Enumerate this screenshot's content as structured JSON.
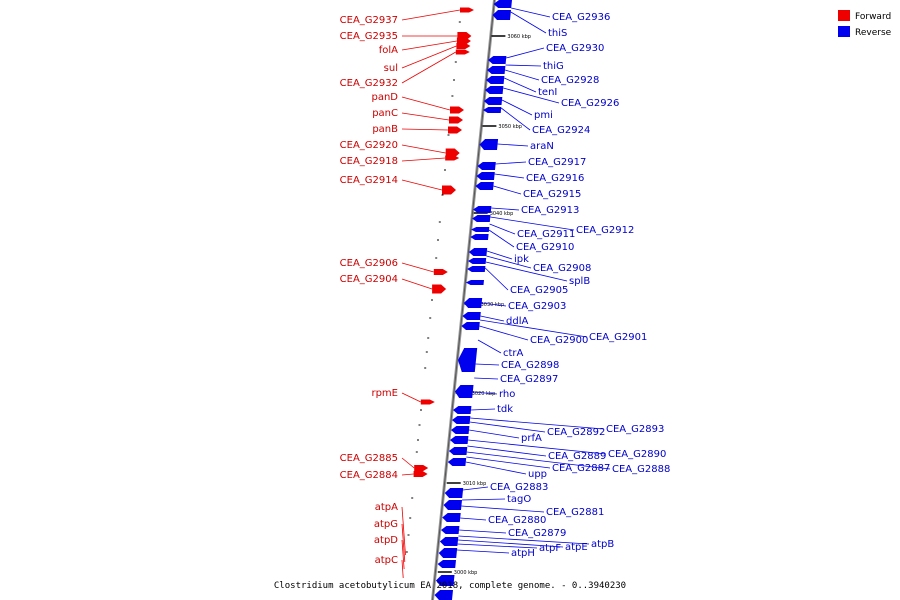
{
  "caption": "Clostridium acetobutylicum EA 2018, complete genome. - 0..3940230",
  "colors": {
    "forward": "#ee0000",
    "reverse": "#0000ee",
    "forward_text": "#cc0000",
    "reverse_text": "#0000cc"
  },
  "legend": [
    {
      "label": "Forward",
      "strand": "forward"
    },
    {
      "label": "Reverse",
      "strand": "reverse"
    }
  ],
  "scale_ticks": [
    "3060 kbp",
    "3050 kbp",
    "3040 kbp",
    "3030 kbp",
    "3020 kbp",
    "3010 kbp",
    "3000 kbp"
  ],
  "forward_genes": [
    "CEA_G2937",
    "CEA_G2935",
    "folA",
    "sul",
    "CEA_G2932",
    "panD",
    "panC",
    "panB",
    "CEA_G2920",
    "CEA_G2918",
    "CEA_G2914",
    "CEA_G2906",
    "CEA_G2904",
    "rpmE",
    "CEA_G2885",
    "CEA_G2884",
    "atpA",
    "atpG",
    "atpD",
    "atpC"
  ],
  "reverse_genes": [
    "CEA_G2936",
    "thiS",
    "CEA_G2930",
    "thiG",
    "CEA_G2928",
    "tenI",
    "CEA_G2926",
    "pmi",
    "CEA_G2924",
    "araN",
    "CEA_G2917",
    "CEA_G2916",
    "CEA_G2915",
    "CEA_G2913",
    "CEA_G2912",
    "CEA_G2911",
    "CEA_G2910",
    "ipk",
    "CEA_G2908",
    "splB",
    "CEA_G2905",
    "CEA_G2903",
    "ddlA",
    "CEA_G2901",
    "CEA_G2900",
    "ctrA",
    "CEA_G2898",
    "CEA_G2897",
    "rho",
    "tdk",
    "CEA_G2893",
    "CEA_G2892",
    "prfA",
    "CEA_G2890",
    "CEA_G2889",
    "CEA_G2888",
    "CEA_G2887",
    "upp",
    "CEA_G2883",
    "tagO",
    "CEA_G2881",
    "CEA_G2880",
    "CEA_G2879",
    "atpB",
    "atpE",
    "atpF",
    "atpH"
  ]
}
